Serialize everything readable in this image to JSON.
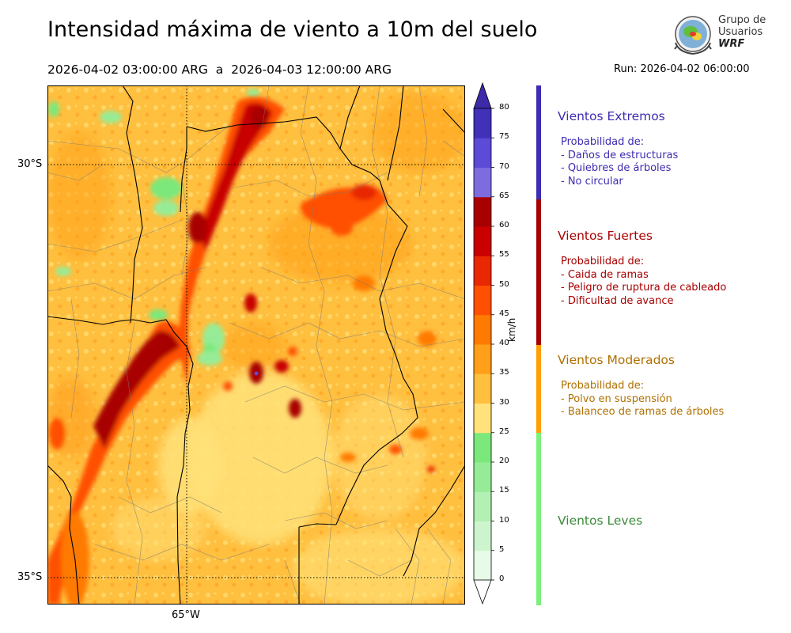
{
  "header": {
    "title": "Intensidad máxima de viento a 10m del suelo",
    "period": "2026-04-02 03:00:00 ARG  a  2026-04-03 12:00:00 ARG",
    "run": "Run: 2026-04-02 06:00:00"
  },
  "logo": {
    "line1": "Grupo de",
    "line2": "Usuarios",
    "line3": "WRF"
  },
  "map": {
    "lat_labels": [
      "30°S",
      "35°S"
    ],
    "lon_labels": [
      "65°W"
    ]
  },
  "colorbar": {
    "unit": "km/h",
    "ticks": [
      "80",
      "75",
      "70",
      "65",
      "60",
      "55",
      "50",
      "45",
      "40",
      "35",
      "30",
      "25",
      "20",
      "15",
      "10",
      "5",
      "0"
    ],
    "colors": [
      "#e8fbe8",
      "#cdf5cd",
      "#b3f0b3",
      "#96ec96",
      "#7ce87c",
      "#ffe27a",
      "#ffbf3f",
      "#ff9f1a",
      "#ff7a00",
      "#ff4f00",
      "#e82800",
      "#c80000",
      "#a80000",
      "#7c6ce0",
      "#5b4bd6",
      "#4031b8"
    ],
    "top_color": "#3c2aa8"
  },
  "categories": [
    {
      "name": "Vientos Extremos",
      "color": "#3d2db0",
      "label_prefix": "Probabilidad de:",
      "items": [
        "- Daños de estructuras",
        "- Quiebres de árboles",
        "- No circular"
      ]
    },
    {
      "name": "Vientos Fuertes",
      "color": "#a80000",
      "label_prefix": "Probabilidad de:",
      "items": [
        "- Caida de ramas",
        "- Peligro de ruptura de cableado",
        "- Dificultad de avance"
      ]
    },
    {
      "name": "Vientos Moderados",
      "color": "#b07000",
      "label_prefix": "Probabilidad de:",
      "items": [
        "- Polvo en suspensión",
        "- Balanceo de ramas de árboles"
      ]
    },
    {
      "name": "Vientos Leves",
      "color": "#3a8a3a"
    }
  ],
  "bands": [
    {
      "color": "#3d2db0"
    },
    {
      "color": "#a80000"
    },
    {
      "color": "#ff9f00"
    },
    {
      "color": "#7cf07c"
    }
  ]
}
